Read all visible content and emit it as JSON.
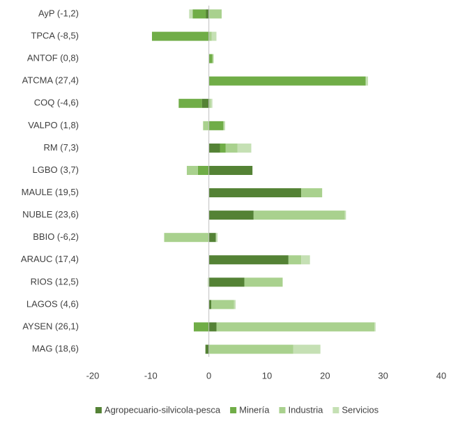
{
  "chart_data": {
    "type": "bar",
    "orientation": "horizontal",
    "stacked": true,
    "categories": [
      "AyP (-1,2)",
      "TPCA (-8,5)",
      "ANTOF (0,8)",
      "ATCMA (27,4)",
      "COQ (-4,6)",
      "VALPO (1,8)",
      "RM (7,3)",
      "LGBO (3,7)",
      "MAULE (19,5)",
      "NUBLE (23,6)",
      "BBIO (-6,2)",
      "ARAUC (17,4)",
      "RIOS (12,5)",
      "LAGOS (4,6)",
      "AYSEN (26,1)",
      "MAG (18,6)"
    ],
    "series": [
      {
        "name": "Agropecuario-silvicola-pesca",
        "color": "#548235",
        "values": [
          -0.5,
          0,
          0,
          0,
          -1.2,
          0,
          1.9,
          7.5,
          15.9,
          7.7,
          1.2,
          13.7,
          6.1,
          0.4,
          1.3,
          -0.6
        ]
      },
      {
        "name": "Minería",
        "color": "#70ad47",
        "values": [
          -2.3,
          -9.8,
          0.6,
          27.0,
          -4.0,
          2.5,
          1.0,
          -1.9,
          0,
          0,
          0,
          0,
          0,
          0,
          -2.6,
          0
        ]
      },
      {
        "name": "Industria",
        "color": "#a9d18e",
        "values": [
          2.2,
          0.5,
          0.2,
          0,
          0.3,
          -1.0,
          2.0,
          -1.9,
          3.6,
          15.7,
          -7.7,
          2.2,
          6.6,
          3.9,
          27.2,
          14.5
        ]
      },
      {
        "name": "Servicios",
        "color": "#c5e0b4",
        "values": [
          -0.6,
          0.8,
          0,
          0.4,
          0.3,
          0.3,
          2.4,
          0,
          0,
          0.2,
          0.3,
          1.5,
          -0.2,
          0.3,
          0.2,
          4.7
        ]
      }
    ],
    "xlim": [
      -20,
      40
    ],
    "xticks": [
      -20,
      -10,
      0,
      10,
      20,
      30,
      40
    ],
    "legend": "bottom"
  }
}
